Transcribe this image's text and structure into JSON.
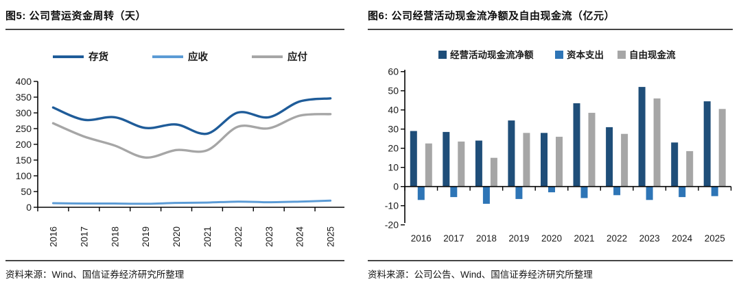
{
  "panels": [
    {
      "title": "图5: 公司营运资金周转（天）",
      "source": "资料来源：Wind、国信证券经济研究所整理"
    },
    {
      "title": "图6: 公司经营活动现金流净额及自由现金流（亿元）",
      "source": "资料来源：公司公告、Wind、国信证券经济研究所整理"
    }
  ],
  "colors": {
    "inventory_line": "#1F5C99",
    "receivable_line": "#5B9BD5",
    "payable_line": "#A6A6A6",
    "ocf_bar": "#1F4E79",
    "capex_bar": "#2E75B6",
    "fcf_bar": "#A6A6A6",
    "axis": "#000000",
    "tick_text": "#1a1a1a"
  },
  "chart_data": [
    {
      "type": "line",
      "title": "公司营运资金周转（天）",
      "xlabel": "",
      "ylabel": "",
      "legend_position": "top",
      "grid": false,
      "categories": [
        "2016",
        "2017",
        "2018",
        "2019",
        "2020",
        "2021",
        "2022",
        "2023",
        "2024",
        "2025"
      ],
      "series": [
        {
          "name": "存货",
          "color": "#1F5C99",
          "values": [
            317,
            278,
            286,
            252,
            263,
            234,
            301,
            286,
            336,
            346
          ]
        },
        {
          "name": "应收",
          "color": "#5B9BD5",
          "values": [
            13,
            12,
            12,
            11,
            14,
            15,
            18,
            16,
            18,
            21
          ]
        },
        {
          "name": "应付",
          "color": "#A6A6A6",
          "values": [
            267,
            225,
            196,
            158,
            182,
            181,
            256,
            251,
            291,
            296
          ]
        }
      ],
      "ylim": [
        0,
        400
      ],
      "yticks": [
        "0",
        "50",
        "100",
        "150",
        "200",
        "250",
        "300",
        "350",
        "400"
      ]
    },
    {
      "type": "bar",
      "title": "公司经营活动现金流净额及自由现金流（亿元）",
      "xlabel": "",
      "ylabel": "",
      "legend_position": "top",
      "grid": false,
      "categories": [
        "2016",
        "2017",
        "2018",
        "2019",
        "2020",
        "2021",
        "2022",
        "2023",
        "2024",
        "2025"
      ],
      "series": [
        {
          "name": "经营活动现金流净额",
          "color": "#1F4E79",
          "values": [
            29,
            28.5,
            24,
            34.5,
            28,
            43.5,
            31,
            52,
            23,
            44.5
          ]
        },
        {
          "name": "资本支出",
          "color": "#2E75B6",
          "values": [
            -7,
            -5.5,
            -9,
            -6.5,
            -3,
            -6,
            -4.5,
            -7,
            -5.5,
            -5
          ]
        },
        {
          "name": "自由现金流",
          "color": "#A6A6A6",
          "values": [
            22.5,
            23.5,
            15,
            28,
            26,
            38.5,
            27.5,
            46,
            18.5,
            40.5
          ]
        }
      ],
      "ylim": [
        -20,
        60
      ],
      "yticks": [
        "-20",
        "-10",
        "0",
        "10",
        "20",
        "30",
        "40",
        "50",
        "60"
      ]
    }
  ]
}
